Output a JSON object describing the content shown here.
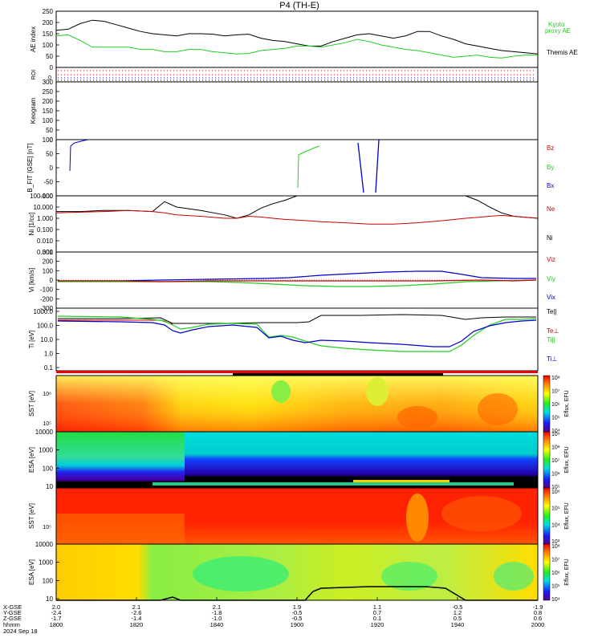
{
  "title": "P4 (TH-E)",
  "footer": {
    "row_labels": [
      "X-GSE",
      "Y-GSE",
      "Z-GSE",
      "hhmm",
      "2024 Sep 18"
    ]
  },
  "chart_data": [
    {
      "type": "line",
      "id": "ae",
      "ylabel": "AE index",
      "ylim": [
        0,
        250
      ],
      "yticks": [
        "0",
        "50",
        "100",
        "150",
        "200",
        "250"
      ],
      "legend": [
        "Kyoto",
        "proxy AE",
        "Themis AE"
      ],
      "colors": {
        "kyoto": "#22cc22",
        "themis": "#000000"
      },
      "x_hours": [
        0,
        0.05,
        0.1,
        0.15,
        0.2,
        0.25,
        0.3,
        0.35,
        0.4,
        0.45,
        0.5,
        0.55,
        0.6,
        0.65,
        0.7,
        0.75,
        0.8,
        0.85,
        0.9,
        0.95,
        1.0,
        1.05,
        1.1,
        1.15,
        1.2,
        1.25,
        1.3,
        1.35,
        1.4,
        1.45,
        1.5,
        1.55,
        1.6,
        1.65,
        1.7,
        1.75,
        1.8,
        1.85,
        1.9,
        1.95,
        2.0
      ],
      "series": [
        {
          "name": "Themis AE",
          "values": [
            165,
            170,
            195,
            210,
            205,
            190,
            175,
            160,
            150,
            145,
            140,
            150,
            150,
            148,
            140,
            145,
            148,
            130,
            120,
            115,
            105,
            95,
            95,
            115,
            130,
            145,
            150,
            140,
            130,
            140,
            160,
            160,
            140,
            125,
            105,
            95,
            85,
            75,
            70,
            65,
            60
          ]
        },
        {
          "name": "Kyoto proxy AE",
          "values": [
            140,
            145,
            120,
            90,
            90,
            90,
            90,
            80,
            80,
            70,
            70,
            80,
            80,
            70,
            65,
            60,
            62,
            75,
            80,
            85,
            95,
            95,
            90,
            100,
            110,
            125,
            115,
            100,
            90,
            80,
            75,
            65,
            55,
            45,
            50,
            55,
            45,
            42,
            50,
            55,
            55
          ]
        }
      ]
    },
    {
      "type": "line",
      "id": "roi",
      "ylabel": "ROI",
      "ylim": [
        0,
        1
      ],
      "yticks": [
        "0"
      ],
      "colors": [
        "#cc0000",
        "#cc0000",
        "#0000cc",
        "#000000"
      ]
    },
    {
      "type": "heatmap",
      "id": "keogram",
      "ylabel": "Keogram",
      "ylim": [
        0,
        300
      ],
      "yticks": [
        "0",
        "50",
        "100",
        "150",
        "200",
        "250",
        "300"
      ]
    },
    {
      "type": "line",
      "id": "bfield",
      "ylabel": "B_FIT [GSE] [nT]",
      "ylim": [
        -100,
        100
      ],
      "yticks": [
        "-100",
        "-50",
        "0",
        "50",
        "100"
      ],
      "legend": [
        "Bz",
        "By",
        "Bx"
      ],
      "colors": {
        "Bz": "#cc0000",
        "By": "#22cc22",
        "Bx": "#0000cc"
      }
    },
    {
      "type": "line",
      "id": "density",
      "ylabel": "Ni [1/cc]",
      "ylim": [
        0.001,
        100
      ],
      "yticks": [
        "0.001",
        "0.010",
        "0.100",
        "1.000",
        "10.000",
        "100.000"
      ],
      "legend": [
        "Ne",
        "Ni"
      ],
      "colors": {
        "Ne": "#cc0000",
        "Ni": "#000000"
      },
      "x_hours": [
        0,
        0.1,
        0.2,
        0.3,
        0.4,
        0.45,
        0.5,
        0.6,
        0.7,
        0.75,
        0.8,
        0.85,
        0.9,
        0.95,
        1.0,
        1.1,
        1.2,
        1.3,
        1.4,
        1.5,
        1.6,
        1.7,
        1.75,
        1.8,
        1.85,
        1.9,
        2.0
      ],
      "series": [
        {
          "name": "Ni",
          "values": [
            4,
            4,
            5,
            5,
            4,
            30,
            10,
            5,
            2,
            1,
            2,
            8,
            20,
            40,
            100,
            100,
            100,
            100,
            100,
            100,
            100,
            100,
            40,
            10,
            3,
            1.5,
            1
          ]
        },
        {
          "name": "Ne",
          "values": [
            3,
            3.5,
            4,
            5,
            4,
            3,
            2,
            1.5,
            1,
            1,
            1.5,
            1.3,
            1,
            0.8,
            0.7,
            0.5,
            0.4,
            0.3,
            0.3,
            0.4,
            0.6,
            1,
            1.2,
            1.5,
            1.8,
            1.5,
            1
          ]
        }
      ]
    },
    {
      "type": "line",
      "id": "velocity",
      "ylabel": "Vi [km/s]",
      "ylim": [
        -300,
        300
      ],
      "yticks": [
        "-300",
        "-200",
        "-100",
        "0",
        "100",
        "200",
        "300"
      ],
      "legend": [
        "Viz",
        "Viy",
        "Vix"
      ],
      "colors": {
        "Viz": "#cc0000",
        "Viy": "#22cc22",
        "Vix": "#0000cc"
      }
    },
    {
      "type": "line",
      "id": "temperature",
      "ylabel": "Ti [eV]",
      "ylim": [
        0.1,
        1000
      ],
      "yticks": [
        "0.1",
        "1.0",
        "10.0",
        "100.0",
        "1000.0"
      ],
      "legend": [
        "Te||",
        "Te⊥",
        "Ti||",
        "Ti⊥"
      ],
      "colors": {
        "Te||": "#000000",
        "Te⊥": "#cc0000",
        "Ti||": "#22cc22",
        "Ti⊥": "#0000cc"
      }
    },
    {
      "type": "heatmap",
      "id": "sst_e",
      "ylabel": "SST [eV]",
      "zlabel": "Eflux, EFU",
      "yticks": [
        "10⁶",
        "10⁵"
      ],
      "zticks": [
        "10⁴",
        "10⁵",
        "10⁶",
        "10⁷",
        "10⁸"
      ]
    },
    {
      "type": "heatmap",
      "id": "esa_e",
      "ylabel": "ESA [eV]",
      "zlabel": "Eflux, EFU",
      "yticks": [
        "10",
        "100",
        "1000",
        "10000"
      ],
      "zticks": [
        "10⁵",
        "10⁶",
        "10⁷",
        "10⁸",
        "10⁹"
      ]
    },
    {
      "type": "heatmap",
      "id": "sst_i",
      "ylabel": "SST [eV]",
      "zlabel": "Eflux, EFU",
      "yticks": [
        "10⁵"
      ],
      "zticks": [
        "10³",
        "10⁴",
        "10⁵",
        "10⁶"
      ]
    },
    {
      "type": "heatmap",
      "id": "esa_i",
      "ylabel": "ESA [eV]",
      "zlabel": "Eflux, EFU",
      "yticks": [
        "10",
        "100",
        "1000",
        "10000"
      ],
      "zticks": [
        "10⁴",
        "10⁵",
        "10⁶",
        "10⁷",
        "10⁸"
      ]
    }
  ],
  "x_axis": {
    "ticks": [
      {
        "hhmm": "1800",
        "x": "2.0",
        "y": "-2.4",
        "z": "-1.7"
      },
      {
        "hhmm": "1820",
        "x": "2.1",
        "y": "-2.6",
        "z": "-1.4"
      },
      {
        "hhmm": "1840",
        "x": "2.1",
        "y": "-1.8",
        "z": "-1.0"
      },
      {
        "hhmm": "1900",
        "x": "1.9",
        "y": "-0.5",
        "z": "-0.5"
      },
      {
        "hhmm": "1920",
        "x": "1.1",
        "y": "0.7",
        "z": "0.1"
      },
      {
        "hhmm": "1940",
        "x": "-0.5",
        "y": "1.2",
        "z": "0.5"
      },
      {
        "hhmm": "2000",
        "x": "-1.9",
        "y": "0.8",
        "z": "0.6"
      }
    ]
  }
}
